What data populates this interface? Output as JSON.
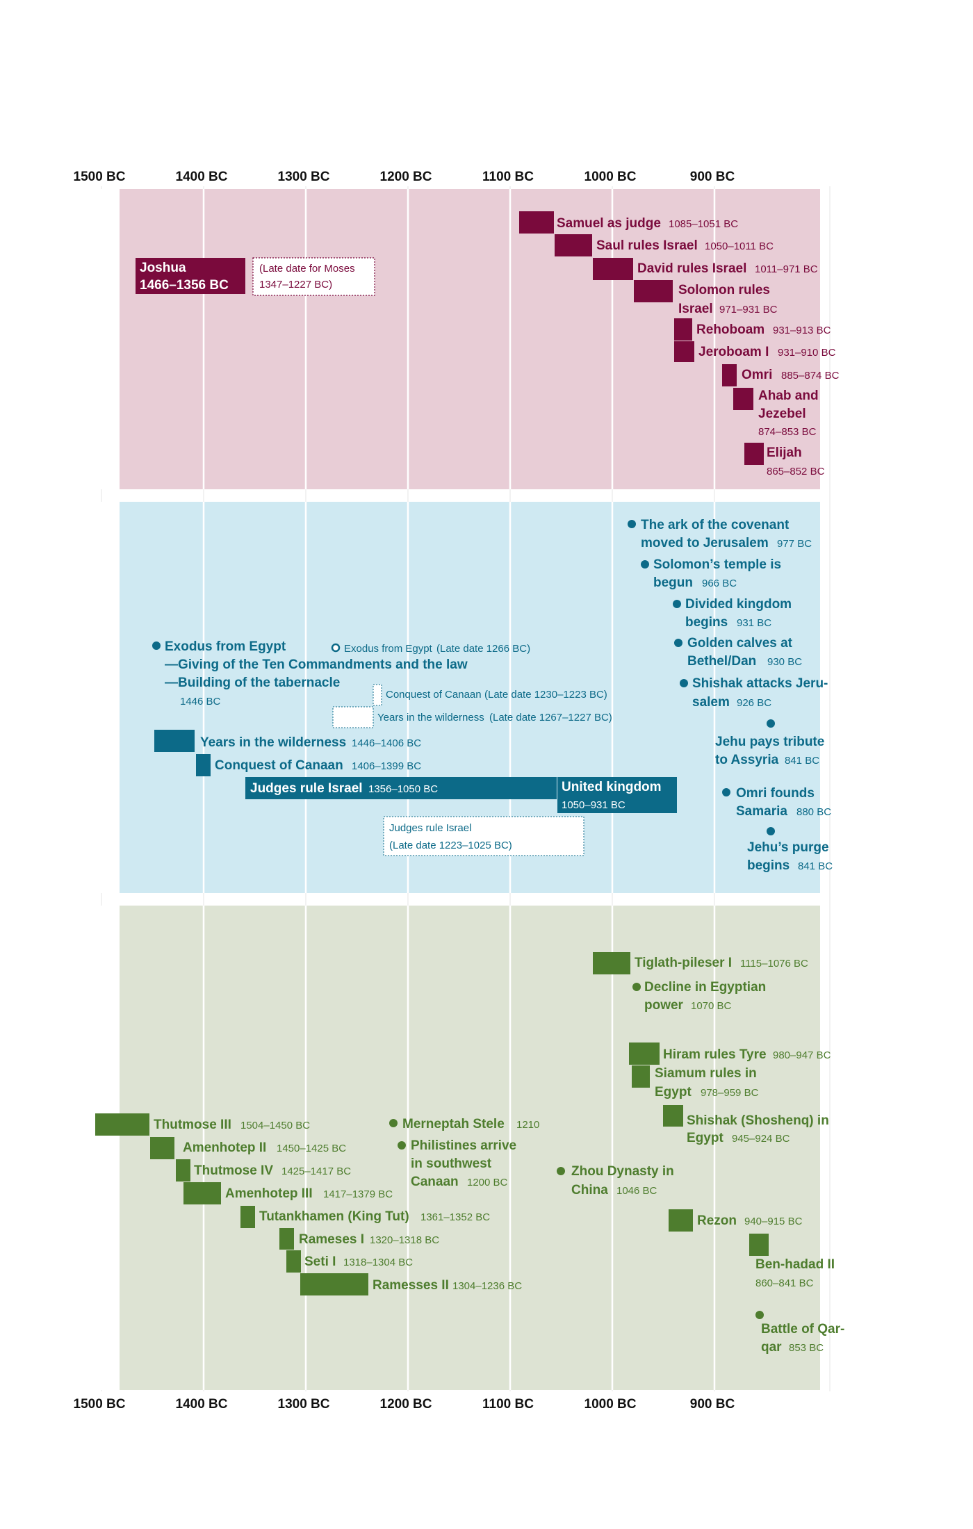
{
  "axis": {
    "ticks": [
      "1500 BC",
      "1400 BC",
      "1300 BC",
      "1200 BC",
      "1100 BC",
      "1000 BC",
      "900 BC"
    ],
    "years": [
      1500,
      1400,
      1300,
      1200,
      1100,
      1000,
      900
    ]
  },
  "colors": {
    "israel_bg": "#E8CDD6",
    "israel_fg": "#7A0A3C",
    "events_bg": "#CFE9F2",
    "events_fg": "#0C6A88",
    "world_bg": "#DDE3D3",
    "world_fg": "#4E7D2E"
  },
  "israel": {
    "items": [
      {
        "name": "Samuel as judge",
        "date": "1085–1051 BC",
        "start": 1085,
        "end": 1051
      },
      {
        "name": "Saul rules Israel",
        "date": "1050–1011 BC",
        "start": 1050,
        "end": 1011
      },
      {
        "name": "David rules Israel",
        "date": "1011–971 BC",
        "start": 1011,
        "end": 971
      },
      {
        "name": "Solomon rules Israel",
        "line1": "Solomon rules",
        "line2": "Israel",
        "date": "971–931 BC",
        "start": 971,
        "end": 931
      },
      {
        "name": "Rehoboam",
        "date": "931–913 BC",
        "start": 931,
        "end": 913
      },
      {
        "name": "Jeroboam I",
        "date": "931–910 BC",
        "start": 931,
        "end": 910
      },
      {
        "name": "Omri",
        "date": "885–874 BC",
        "start": 885,
        "end": 874
      },
      {
        "name": "Ahab and Jezebel",
        "line1": "Ahab and",
        "line2": "Jezebel",
        "date": "874–853 BC",
        "start": 874,
        "end": 853
      },
      {
        "name": "Elijah",
        "date": "865–852 BC",
        "start": 865,
        "end": 852
      }
    ],
    "joshua": {
      "name": "Joshua",
      "date": "1466–1356 BC",
      "start": 1466,
      "end": 1356
    },
    "moses_late": {
      "line1": "(Late date for Moses",
      "line2": "1347–1227 BC)",
      "start": 1347,
      "end": 1227
    }
  },
  "events": {
    "points": [
      {
        "line1": "The ark of the covenant",
        "line2": "moved to Jerusalem",
        "date": "977 BC",
        "year": 977
      },
      {
        "line1": "Solomon’s temple is",
        "line2": "begun",
        "date": "966 BC",
        "year": 966
      },
      {
        "line1": "Divided kingdom",
        "line2": "begins",
        "date": "931 BC",
        "year": 931
      },
      {
        "line1": "Golden calves at",
        "line2": "Bethel/Dan",
        "date": "930 BC",
        "year": 930
      },
      {
        "line1": "Shishak attacks Jeru-",
        "line2": "salem",
        "date": "926 BC",
        "year": 926
      },
      {
        "line1": "Jehu pays tribute",
        "line2": "to Assyria",
        "date": "841 BC",
        "year": 841
      },
      {
        "line1": "Omri founds",
        "line2": "Samaria",
        "date": "880 BC",
        "year": 880
      },
      {
        "line1": "Jehu’s purge",
        "line2": "begins",
        "date": "841 BC",
        "year": 841
      }
    ],
    "exodus": {
      "line1": "Exodus from Egypt",
      "line2": "—Giving of the Ten Commandments and the law",
      "line3": "—Building of the tabernacle",
      "date": "1446 BC",
      "year": 1446
    },
    "exodus_late": {
      "label": "Exodus from Egypt",
      "date": "(Late date 1266 BC)",
      "year": 1266
    },
    "conquest_late": {
      "label": "Conquest of Canaan",
      "date": "(Late date 1230–1223 BC)",
      "start": 1230,
      "end": 1223
    },
    "wilderness_late": {
      "label": "Years in the wilderness",
      "date": "(Late date 1267–1227 BC)",
      "start": 1267,
      "end": 1227
    },
    "wilderness": {
      "name": "Years in the wilderness",
      "date": "1446–1406 BC",
      "start": 1446,
      "end": 1406
    },
    "conquest": {
      "name": "Conquest of Canaan",
      "date": "1406–1399 BC",
      "start": 1406,
      "end": 1399
    },
    "judges": {
      "name": "Judges rule Israel",
      "date": "1356–1050 BC",
      "start": 1356,
      "end": 1050
    },
    "united": {
      "name": "United kingdom",
      "date": "1050–931 BC",
      "start": 1050,
      "end": 931
    },
    "judges_late": {
      "line1": "Judges rule Israel",
      "line2": "(Late date 1223–1025 BC)",
      "start": 1223,
      "end": 1025
    }
  },
  "world": {
    "bars": [
      {
        "name": "Tiglath-pileser I",
        "date": "1115–1076 BC",
        "start": 1115,
        "end": 1076
      },
      {
        "name": "Hiram rules Tyre",
        "date": "980–947 BC",
        "start": 980,
        "end": 947
      },
      {
        "line1": "Siamum rules in",
        "line2": "Egypt",
        "date": "978–959 BC",
        "start": 978,
        "end": 959
      },
      {
        "line1": "Shishak (Shoshenq) in",
        "line2": "Egypt",
        "date": "945–924 BC",
        "start": 945,
        "end": 924
      },
      {
        "name": "Thutmose III",
        "date": "1504–1450 BC",
        "start": 1504,
        "end": 1450
      },
      {
        "name": "Amenhotep II",
        "date": "1450–1425 BC",
        "start": 1450,
        "end": 1425
      },
      {
        "name": "Thutmose IV",
        "date": "1425–1417 BC",
        "start": 1425,
        "end": 1417
      },
      {
        "name": "Amenhotep III",
        "date": "1417–1379 BC",
        "start": 1417,
        "end": 1379
      },
      {
        "name": "Tutankhamen (King Tut)",
        "date": "1361–1352 BC",
        "start": 1361,
        "end": 1352
      },
      {
        "name": "Rameses I",
        "date": "1320–1318 BC",
        "start": 1320,
        "end": 1318
      },
      {
        "name": "Seti I",
        "date": "1318–1304 BC",
        "start": 1318,
        "end": 1304
      },
      {
        "name": "Ramesses II",
        "date": "1304–1236 BC",
        "start": 1304,
        "end": 1236
      },
      {
        "name": "Rezon",
        "date": "940–915 BC",
        "start": 940,
        "end": 915
      },
      {
        "line1": "Ben-hadad II",
        "line2": "",
        "date": "860–841 BC",
        "start": 860,
        "end": 841
      }
    ],
    "points": [
      {
        "line1": "Decline in Egyptian",
        "line2": "power",
        "date": "1070 BC",
        "year": 1070
      },
      {
        "name": "Merneptah Stele",
        "date": "1210",
        "year": 1210
      },
      {
        "line1": "Philistines arrive",
        "line2": "in southwest",
        "line3": "Canaan",
        "date": "1200 BC",
        "year": 1200
      },
      {
        "line1": "Zhou Dynasty in",
        "line2": "China",
        "date": "1046 BC",
        "year": 1046
      },
      {
        "line1": "Battle of Qar-",
        "line2": "qar",
        "date": "853 BC",
        "year": 853
      }
    ]
  }
}
